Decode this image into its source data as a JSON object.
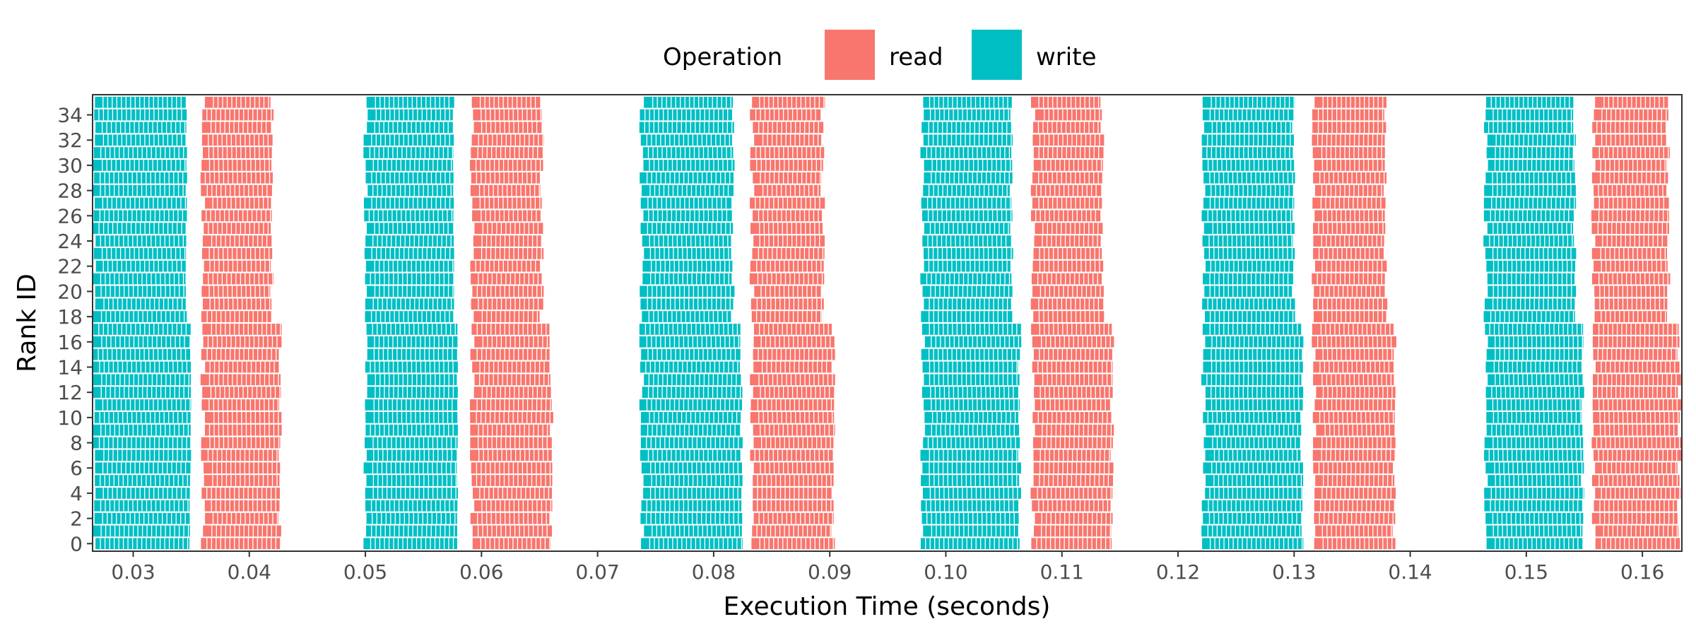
{
  "colors": {
    "read": "#F8766D",
    "write": "#00BFC4"
  },
  "chart_data": {
    "type": "gantt-timeline",
    "xlabel": "Execution Time (seconds)",
    "ylabel": "Rank ID",
    "xlim": [
      0.0265,
      0.1634
    ],
    "ylim": [
      -0.6,
      35.6
    ],
    "x_ticks": [
      0.03,
      0.04,
      0.05,
      0.06,
      0.07,
      0.08,
      0.09,
      0.1,
      0.11,
      0.12,
      0.13,
      0.14,
      0.15,
      0.16
    ],
    "x_tick_labels": [
      "0.03",
      "0.04",
      "0.05",
      "0.06",
      "0.07",
      "0.08",
      "0.09",
      "0.10",
      "0.11",
      "0.12",
      "0.13",
      "0.14",
      "0.15",
      "0.16"
    ],
    "y_ticks": [
      0,
      2,
      4,
      6,
      8,
      10,
      12,
      14,
      16,
      18,
      20,
      22,
      24,
      26,
      28,
      30,
      32,
      34
    ],
    "y_tick_labels": [
      "0",
      "2",
      "4",
      "6",
      "8",
      "10",
      "12",
      "14",
      "16",
      "18",
      "20",
      "22",
      "24",
      "26",
      "28",
      "30",
      "32",
      "34"
    ],
    "ranks": 36,
    "grid": false,
    "legend": {
      "title": "Operation",
      "position": "top",
      "entries": [
        {
          "label": "read",
          "series": "read"
        },
        {
          "label": "write",
          "series": "write"
        }
      ]
    },
    "series": [
      {
        "name": "write",
        "color_key": "write",
        "phases": [
          {
            "start": 0.0266,
            "end_low": 0.0345,
            "end_high": 0.035
          },
          {
            "start": 0.05,
            "end_low": 0.0575,
            "end_high": 0.058
          },
          {
            "start": 0.0738,
            "end_low": 0.0815,
            "end_high": 0.0825
          },
          {
            "start": 0.098,
            "end_low": 0.1055,
            "end_high": 0.1065
          },
          {
            "start": 0.1222,
            "end_low": 0.1298,
            "end_high": 0.1308
          },
          {
            "start": 0.1465,
            "end_low": 0.154,
            "end_high": 0.155
          }
        ]
      },
      {
        "name": "read",
        "color_key": "read",
        "phases": [
          {
            "start": 0.036,
            "end_low": 0.0418,
            "end_high": 0.0428
          },
          {
            "start": 0.0592,
            "end_low": 0.065,
            "end_high": 0.0662
          },
          {
            "start": 0.0833,
            "end_low": 0.0892,
            "end_high": 0.0905
          },
          {
            "start": 0.1075,
            "end_low": 0.1133,
            "end_high": 0.1145
          },
          {
            "start": 0.1317,
            "end_low": 0.1377,
            "end_high": 0.1388
          },
          {
            "start": 0.1558,
            "end_low": 0.162,
            "end_high": 0.1634
          }
        ]
      }
    ]
  }
}
